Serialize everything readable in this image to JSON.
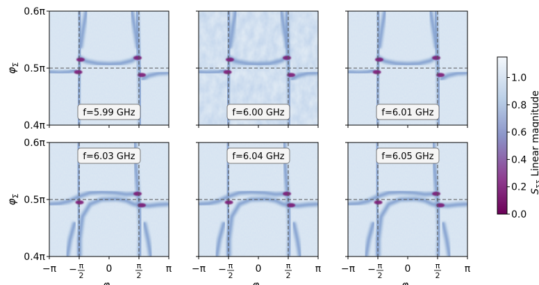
{
  "chart_data": {
    "type": "heatmap",
    "layout": "2x3 grid of panels with shared colorbar on the right",
    "x_axis": {
      "label": "φ_Δ",
      "label_base": "φ",
      "label_sub": "Δ",
      "ticks": [
        {
          "value": -3.14159,
          "label": "−π"
        },
        {
          "value": -1.5708,
          "label": "−π/2"
        },
        {
          "value": 0,
          "label": "0"
        },
        {
          "value": 1.5708,
          "label": "π/2"
        },
        {
          "value": 3.14159,
          "label": "π"
        }
      ],
      "range": [
        -3.14159,
        3.14159
      ]
    },
    "y_axis": {
      "label": "φ_Σ",
      "label_base": "φ",
      "label_sub": "Σ",
      "ticks": [
        {
          "value": 0.4,
          "label": "0.4π"
        },
        {
          "value": 0.5,
          "label": "0.5π"
        },
        {
          "value": 0.6,
          "label": "0.6π"
        }
      ],
      "range_in_pi": [
        0.4,
        0.6
      ]
    },
    "dashed_guides": {
      "x": [
        -1.5708,
        1.5708
      ],
      "y_in_pi": 0.5,
      "color": "#555555"
    },
    "panels": [
      {
        "label": "f=5.99 GHz",
        "freq_ghz": 5.99,
        "label_position": "bottom",
        "noise": "low"
      },
      {
        "label": "f=6.00 GHz",
        "freq_ghz": 6.0,
        "label_position": "bottom",
        "noise": "high"
      },
      {
        "label": "f=6.01 GHz",
        "freq_ghz": 6.01,
        "label_position": "bottom",
        "noise": "low"
      },
      {
        "label": "f=6.03 GHz",
        "freq_ghz": 6.03,
        "label_position": "top",
        "noise": "low"
      },
      {
        "label": "f=6.04 GHz",
        "freq_ghz": 6.04,
        "label_position": "top",
        "noise": "low"
      },
      {
        "label": "f=6.05 GHz",
        "freq_ghz": 6.05,
        "label_position": "top",
        "noise": "low"
      }
    ],
    "colorbar": {
      "label": "S_ΣΣ Linear magnitude",
      "label_s": "S",
      "label_sub": "ΣΣ",
      "label_rest": " Linear magnitude",
      "range": [
        0.0,
        1.15
      ],
      "ticks": [
        {
          "value": 0.0,
          "label": "0.0"
        },
        {
          "value": 0.2,
          "label": "0.2"
        },
        {
          "value": 0.4,
          "label": "0.4"
        },
        {
          "value": 0.6,
          "label": "0.6"
        },
        {
          "value": 0.8,
          "label": "0.8"
        },
        {
          "value": 1.0,
          "label": "1.0"
        }
      ],
      "colormap": [
        "#6b0057",
        "#8e3c8f",
        "#8c95c9",
        "#b8cde6",
        "#eef4fa"
      ]
    }
  }
}
